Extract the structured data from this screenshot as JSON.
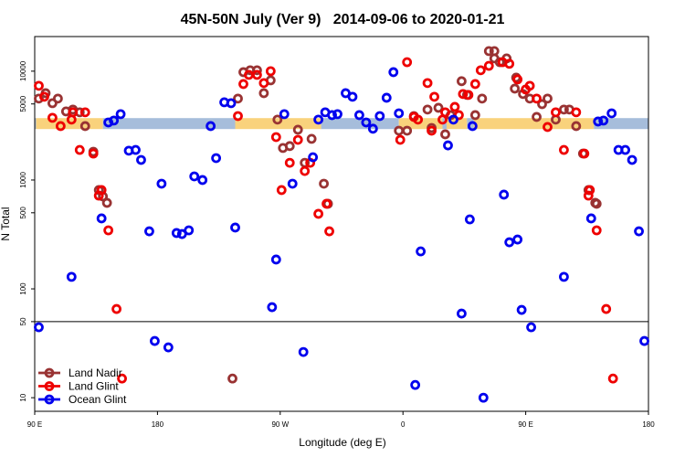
{
  "chart_data": {
    "type": "scatter",
    "title": "45N-50N July (Ver 9)   2014-09-06 to 2020-01-21",
    "x_label": "Longitude (deg E)",
    "y_label": "N Total",
    "log_y": true,
    "legend": "lower left",
    "xlim": [
      90,
      540
    ],
    "xticks": [
      {
        "value": 90,
        "label": "90 E"
      },
      {
        "value": 180,
        "label": "180"
      },
      {
        "value": 270,
        "label": "90 W"
      },
      {
        "value": 360,
        "label": "0"
      },
      {
        "value": 450,
        "label": "90 E"
      },
      {
        "value": 540,
        "label": "180"
      }
    ],
    "ylim": [
      7.5,
      20800
    ],
    "yticks": [
      10,
      50,
      100,
      500,
      1000,
      5000,
      10000
    ],
    "hline": 50,
    "band": {
      "value": 3300,
      "segments": [
        {
          "x": [
            90,
            91
          ],
          "color": "#a6bddb"
        },
        {
          "x": [
            91,
            140
          ],
          "color": "#f9d27c"
        },
        {
          "x": [
            140,
            237
          ],
          "color": "#a6bddb"
        },
        {
          "x": [
            237,
            300
          ],
          "color": "#f9d27c"
        },
        {
          "x": [
            300,
            357
          ],
          "color": "#a6bddb"
        },
        {
          "x": [
            357,
            389
          ],
          "color": "#f9d27c"
        },
        {
          "x": [
            389,
            392
          ],
          "color": "#a6bddb"
        },
        {
          "x": [
            392,
            407
          ],
          "color": "#f9d27c"
        },
        {
          "x": [
            407,
            412
          ],
          "color": "#a6bddb"
        },
        {
          "x": [
            412,
            500
          ],
          "color": "#f9d27c"
        },
        {
          "x": [
            500,
            540
          ],
          "color": "#a6bddb"
        }
      ]
    },
    "series": [
      {
        "name": "Land Nadir",
        "color": "#993333",
        "x": [
          93,
          98,
          103,
          107,
          113,
          118,
          123,
          127,
          133,
          137,
          140,
          143,
          235,
          239,
          243,
          248,
          253,
          258,
          263,
          268,
          272,
          277,
          283,
          288,
          293,
          302,
          305,
          357,
          363,
          368,
          378,
          381,
          386,
          391,
          395,
          403,
          407,
          413,
          418,
          423,
          427,
          427,
          431,
          436,
          442,
          443,
          448,
          453,
          458,
          462,
          466,
          472,
          478,
          482,
          487,
          492,
          496,
          501,
          502
        ],
        "values": [
          5600,
          6280,
          5080,
          5600,
          4270,
          4440,
          4190,
          3130,
          1820,
          809,
          706,
          617,
          15.0,
          5600,
          9800,
          10200,
          10200,
          6280,
          8240,
          3590,
          1970,
          2050,
          2900,
          1440,
          2390,
          925,
          605,
          2840,
          2840,
          3870,
          4440,
          3010,
          4610,
          2630,
          3950,
          8090,
          6050,
          3950,
          5600,
          15300,
          15300,
          13100,
          12100,
          13100,
          6920,
          8730,
          6170,
          5600,
          3800,
          4980,
          5600,
          3590,
          4440,
          4440,
          3130,
          1750,
          809,
          617,
          605
        ]
      },
      {
        "name": "Land Glint",
        "color": "#ee0000",
        "x": [
          93,
          97,
          103,
          109,
          117,
          118,
          127,
          123,
          133,
          137,
          139,
          144,
          150,
          154,
          239,
          243,
          247,
          253,
          258,
          263,
          267,
          271,
          277,
          283,
          288,
          292,
          298,
          304,
          306,
          358,
          363,
          368,
          371,
          378,
          381,
          383,
          389,
          391,
          398,
          401,
          404,
          408,
          413,
          417,
          423,
          433,
          438,
          444,
          450,
          453,
          458,
          466,
          472,
          478,
          487,
          493,
          496,
          497,
          502,
          509,
          514
        ],
        "values": [
          7340,
          5820,
          3730,
          3130,
          3590,
          4190,
          4190,
          1890,
          1750,
          719,
          809,
          345,
          65.3,
          15.0,
          3870,
          7620,
          9250,
          9250,
          7780,
          10000,
          2480,
          809,
          1440,
          2340,
          1210,
          1440,
          489,
          605,
          338,
          2340,
          12100,
          3800,
          3590,
          7780,
          2840,
          5820,
          3590,
          4190,
          4700,
          3950,
          6170,
          6050,
          7620,
          10200,
          11200,
          12100,
          11700,
          8400,
          6790,
          7340,
          5600,
          3070,
          4190,
          1890,
          4190,
          1750,
          719,
          809,
          345,
          65.3,
          15.0
        ]
      },
      {
        "name": "Ocean Glint",
        "color": "#0000ee",
        "x": [
          93,
          117,
          139,
          144,
          148,
          153,
          159,
          164,
          168,
          174,
          178,
          183,
          188,
          194,
          198,
          203,
          207,
          213,
          219,
          223,
          229,
          234,
          237,
          264,
          267,
          273,
          279,
          287,
          294,
          298,
          303,
          308,
          312,
          318,
          323,
          328,
          333,
          338,
          343,
          348,
          353,
          357,
          369,
          373,
          393,
          397,
          403,
          409,
          411,
          419,
          434,
          438,
          444,
          447,
          454,
          478,
          498,
          503,
          507,
          513,
          518,
          523,
          528,
          533,
          537
        ],
        "values": [
          44.4,
          129,
          444,
          3380,
          3520,
          4030,
          1860,
          1890,
          1530,
          338,
          33.2,
          925,
          29.0,
          326,
          319,
          345,
          1080,
          1000,
          3130,
          1590,
          5180,
          5080,
          366,
          67.9,
          186,
          4030,
          925,
          26.3,
          1620,
          3590,
          4190,
          3950,
          4030,
          6280,
          5820,
          3950,
          3380,
          2960,
          3870,
          5700,
          9800,
          4100,
          13.1,
          221,
          2080,
          3590,
          59.3,
          435,
          3130,
          10,
          734,
          268,
          284,
          64.1,
          44.4,
          129,
          444,
          3450,
          3520,
          4100,
          1890,
          1890,
          1530,
          338,
          33.2
        ]
      }
    ]
  }
}
